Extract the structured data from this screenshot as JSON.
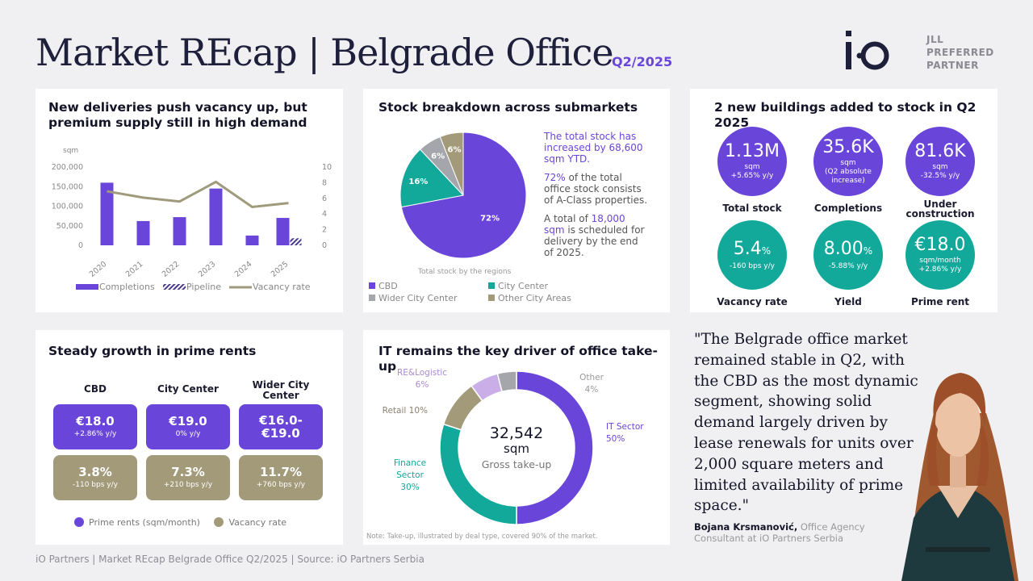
{
  "header": {
    "title": "Market REcap | Belgrade Office",
    "period": "Q2/2025",
    "partner_line1": "JLL",
    "partner_line2": "PREFERRED",
    "partner_line3": "PARTNER"
  },
  "deliveries": {
    "title_line1": "New deliveries push vacancy up, but",
    "title_line2": "premium supply still in high demand",
    "colors": {
      "completions": "#6a45d9",
      "pipeline": "#4a3a8c",
      "vacancy": "#a09a7c"
    },
    "chart_data": {
      "type": "bar",
      "title": "New deliveries push vacancy up, but premium supply still in high demand",
      "ylabel": "sqm",
      "categories": [
        "2020",
        "2021",
        "2022",
        "2023",
        "2024",
        "2025"
      ],
      "y_ticks": [
        "200,000",
        "150,000",
        "100,000",
        "50,000",
        "0"
      ],
      "y2_ticks": [
        "10",
        "8",
        "6",
        "4",
        "2",
        "0"
      ],
      "ylim": [
        0,
        200000
      ],
      "y2lim": [
        0,
        10
      ],
      "series": [
        {
          "name": "Completions",
          "type": "bar",
          "values": [
            160000,
            62000,
            72000,
            145000,
            25000,
            70000
          ]
        },
        {
          "name": "Pipeline",
          "type": "bar",
          "values": [
            0,
            0,
            0,
            0,
            0,
            18000
          ]
        },
        {
          "name": "Vacancy rate",
          "type": "line",
          "axis": "right",
          "values": [
            6.9,
            6.1,
            5.6,
            8.1,
            4.9,
            5.4
          ]
        }
      ],
      "legend": "bottom"
    }
  },
  "stock": {
    "title": "Stock breakdown across submarkets",
    "caption": "Total stock by the regions",
    "note1": "The total stock has increased by 68,600 sqm YTD.",
    "note2_hl": "72%",
    "note2": " of the total office stock consists of A-Class properties.",
    "note3_pre": "A total of ",
    "note3_hl": "18,000 sqm",
    "note3_post": " is scheduled for delivery by the end of 2025.",
    "chart_data": {
      "type": "pie",
      "title": "Total stock by the regions",
      "categories": [
        "CBD",
        "City Center",
        "Wider City Center",
        "Other City Areas"
      ],
      "values": [
        72,
        16,
        6,
        6
      ],
      "labels": [
        "72%",
        "16%",
        "6%",
        "6%"
      ],
      "colors": [
        "#6a45d9",
        "#12a89a",
        "#a4a6ab",
        "#a39a7a"
      ],
      "legend": "bottom"
    }
  },
  "kpis": {
    "title": "2 new buildings added to stock in Q2 2025",
    "colors": {
      "purple": "#6a45d9",
      "teal": "#12a89a"
    },
    "items": [
      {
        "value": "1.13M",
        "unit": "",
        "sub1": "sqm",
        "sub2": "+5.65% y/y",
        "label": "Total stock"
      },
      {
        "value": "35.6K",
        "unit": "",
        "sub1": "sqm",
        "sub2": "(Q2 absolute increase)",
        "label": "Completions"
      },
      {
        "value": "81.6K",
        "unit": "",
        "sub1": "sqm",
        "sub2": "-32.5% y/y",
        "label": "Under construction"
      },
      {
        "value": "5.4",
        "unit": "%",
        "sub1": "-160 bps y/y",
        "sub2": "",
        "label": "Vacancy rate"
      },
      {
        "value": "8.00",
        "unit": "%",
        "sub1": "-5.88% y/y",
        "sub2": "",
        "label": "Yield"
      },
      {
        "value": "€18.0",
        "unit": "",
        "sub1": "sqm/month",
        "sub2": "+2.86% y/y",
        "label": "Prime rent"
      }
    ]
  },
  "rents": {
    "title": "Steady growth in prime rents",
    "colors": {
      "rent": "#6a45d9",
      "vacancy": "#a39a7a"
    },
    "columns": [
      {
        "name": "CBD",
        "rent": "€18.0",
        "rent_change": "+2.86% y/y",
        "vacancy": "3.8%",
        "vacancy_change": "-110 bps y/y"
      },
      {
        "name": "City Center",
        "rent": "€19.0",
        "rent_change": "0% y/y",
        "vacancy": "7.3%",
        "vacancy_change": "+210 bps y/y"
      },
      {
        "name": "Wider City Center",
        "rent": "€16.0-€19.0",
        "rent_change": "",
        "vacancy": "11.7%",
        "vacancy_change": "+760 bps y/y"
      }
    ],
    "legend_rent": "Prime rents (sqm/month)",
    "legend_vacancy": "Vacancy rate"
  },
  "takeup": {
    "title": "IT remains the key driver of office take-up",
    "total_value": "32,542",
    "total_unit": "sqm",
    "total_label": "Gross take-up",
    "note": "Note: Take-up, illustrated by deal type, covered 90% of the market.",
    "chart_data": {
      "type": "pie",
      "title": "IT remains the key driver of office take-up",
      "categories": [
        "IT Sector",
        "Finance Sector",
        "Retail",
        "RE&Logistic",
        "Other"
      ],
      "values": [
        50,
        30,
        10,
        6,
        4
      ],
      "labels": [
        "50%",
        "30%",
        "10%",
        "6%",
        "4%"
      ],
      "colors": [
        "#6a45d9",
        "#12a89a",
        "#a39a7a",
        "#c9aee8",
        "#a4a6ab"
      ]
    }
  },
  "quote": {
    "text": "\"The Belgrade office market remained stable in Q2, with the CBD as the most dynamic segment, showing solid demand largely driven by lease renewals for units over 2,000 square meters and limited availability of prime space.\"",
    "author": "Bojana Krsmanović,",
    "role": " Office Agency Consultant at iO Partners Serbia"
  },
  "footer": "iO Partners | Market REcap Belgrade Office Q2/2025 | Source: iO Partners Serbia"
}
